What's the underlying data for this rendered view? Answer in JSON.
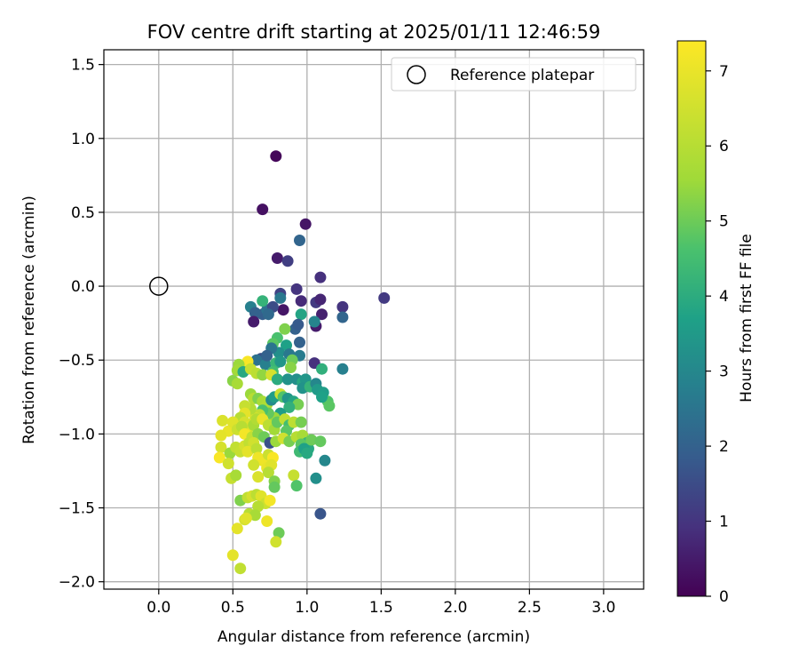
{
  "chart_data": {
    "type": "scatter",
    "title": "FOV centre drift starting at 2025/01/11 12:46:59",
    "xlabel": "Angular distance from reference (arcmin)",
    "ylabel": "Rotation from reference (arcmin)",
    "xlim": [
      -0.37,
      3.27
    ],
    "ylim": [
      -2.05,
      1.6
    ],
    "x_ticks": [
      0.0,
      0.5,
      1.0,
      1.5,
      2.0,
      2.5,
      3.0
    ],
    "x_tick_labels": [
      "0.0",
      "0.5",
      "1.0",
      "1.5",
      "2.0",
      "2.5",
      "3.0"
    ],
    "y_ticks": [
      1.5,
      1.0,
      0.5,
      0.0,
      -0.5,
      -1.0,
      -1.5,
      -2.0
    ],
    "y_tick_labels": [
      "1.5",
      "1.0",
      "0.5",
      "0.0",
      "−0.5",
      "−1.0",
      "−1.5",
      "−2.0"
    ],
    "grid": true,
    "legend": {
      "placement": "top-right",
      "entries": [
        "Reference platepar"
      ]
    },
    "reference_point": {
      "x": 0.0,
      "y": 0.0,
      "marker": "open-circle"
    },
    "colorbar": {
      "label": "Hours from first FF file",
      "range": [
        0,
        7.4
      ],
      "ticks": [
        0,
        1,
        2,
        3,
        4,
        5,
        6,
        7
      ],
      "tick_labels": [
        "0",
        "1",
        "2",
        "3",
        "4",
        "5",
        "6",
        "7"
      ],
      "colormap": "viridis"
    },
    "points": [
      [
        0.79,
        0.88,
        0.1
      ],
      [
        0.7,
        0.52,
        0.3
      ],
      [
        0.99,
        0.42,
        0.4
      ],
      [
        0.8,
        0.19,
        0.5
      ],
      [
        0.87,
        0.17,
        1.2
      ],
      [
        0.95,
        0.31,
        2.1
      ],
      [
        1.09,
        0.06,
        0.9
      ],
      [
        1.52,
        -0.08,
        1.1
      ],
      [
        0.93,
        -0.02,
        1.0
      ],
      [
        0.82,
        -0.05,
        1.3
      ],
      [
        0.96,
        -0.1,
        0.8
      ],
      [
        1.06,
        -0.11,
        1.1
      ],
      [
        1.09,
        -0.09,
        0.7
      ],
      [
        1.24,
        -0.14,
        1.0
      ],
      [
        1.24,
        -0.21,
        2.1
      ],
      [
        1.1,
        -0.19,
        0.6
      ],
      [
        1.06,
        -0.27,
        0.5
      ],
      [
        1.05,
        -0.24,
        2.9
      ],
      [
        0.96,
        -0.19,
        3.8
      ],
      [
        0.84,
        -0.16,
        0.4
      ],
      [
        0.62,
        -0.14,
        2.8
      ],
      [
        0.7,
        -0.19,
        1.9
      ],
      [
        0.73,
        -0.16,
        2.4
      ],
      [
        0.7,
        -0.1,
        4.2
      ],
      [
        0.77,
        -0.14,
        1.5
      ],
      [
        0.74,
        -0.19,
        2.2
      ],
      [
        0.65,
        -0.18,
        2.0
      ],
      [
        0.82,
        -0.08,
        2.6
      ],
      [
        0.92,
        -0.29,
        2.0
      ],
      [
        0.64,
        -0.24,
        0.5
      ],
      [
        0.85,
        -0.29,
        5.2
      ],
      [
        0.94,
        -0.26,
        1.8
      ],
      [
        0.8,
        -0.35,
        4.6
      ],
      [
        0.86,
        -0.4,
        3.7
      ],
      [
        0.81,
        -0.45,
        3.2
      ],
      [
        0.77,
        -0.39,
        4.8
      ],
      [
        0.76,
        -0.42,
        2.5
      ],
      [
        0.95,
        -0.38,
        2.0
      ],
      [
        0.95,
        -0.47,
        2.7
      ],
      [
        0.88,
        -0.46,
        2.6
      ],
      [
        1.05,
        -0.52,
        0.9
      ],
      [
        1.1,
        -0.56,
        4.1
      ],
      [
        1.24,
        -0.56,
        2.8
      ],
      [
        0.69,
        -0.49,
        1.6
      ],
      [
        0.66,
        -0.5,
        2.4
      ],
      [
        0.72,
        -0.53,
        2.8
      ],
      [
        0.73,
        -0.47,
        2.0
      ],
      [
        0.79,
        -0.52,
        4.3
      ],
      [
        0.82,
        -0.51,
        3.4
      ],
      [
        0.9,
        -0.5,
        5.0
      ],
      [
        0.89,
        -0.55,
        5.3
      ],
      [
        0.6,
        -0.51,
        7.3
      ],
      [
        0.54,
        -0.53,
        5.5
      ],
      [
        0.53,
        -0.57,
        5.6
      ],
      [
        0.57,
        -0.58,
        3.9
      ],
      [
        0.62,
        -0.56,
        6.3
      ],
      [
        0.66,
        -0.59,
        6.1
      ],
      [
        0.7,
        -0.6,
        5.4
      ],
      [
        0.77,
        -0.58,
        4.5
      ],
      [
        0.76,
        -0.6,
        6.6
      ],
      [
        0.8,
        -0.63,
        4.0
      ],
      [
        0.87,
        -0.63,
        3.3
      ],
      [
        0.93,
        -0.63,
        3.2
      ],
      [
        0.97,
        -0.65,
        3.9
      ],
      [
        0.99,
        -0.63,
        3.4
      ],
      [
        0.97,
        -0.69,
        3.3
      ],
      [
        1.02,
        -0.68,
        4.2
      ],
      [
        1.06,
        -0.66,
        3.0
      ],
      [
        1.07,
        -0.7,
        3.5
      ],
      [
        1.11,
        -0.72,
        3.6
      ],
      [
        1.14,
        -0.78,
        4.7
      ],
      [
        1.15,
        -0.81,
        4.8
      ],
      [
        1.1,
        -0.75,
        3.7
      ],
      [
        0.5,
        -0.64,
        5.3
      ],
      [
        0.53,
        -0.66,
        5.7
      ],
      [
        0.62,
        -0.73,
        5.5
      ],
      [
        0.64,
        -0.76,
        6.0
      ],
      [
        0.67,
        -0.76,
        5.2
      ],
      [
        0.7,
        -0.78,
        5.7
      ],
      [
        0.73,
        -0.8,
        5.8
      ],
      [
        0.76,
        -0.77,
        3.1
      ],
      [
        0.78,
        -0.75,
        3.6
      ],
      [
        0.82,
        -0.73,
        6.4
      ],
      [
        0.84,
        -0.75,
        4.7
      ],
      [
        0.87,
        -0.76,
        3.4
      ],
      [
        0.91,
        -0.78,
        3.8
      ],
      [
        0.94,
        -0.8,
        5.1
      ],
      [
        0.88,
        -0.82,
        4.1
      ],
      [
        0.82,
        -0.86,
        3.6
      ],
      [
        0.78,
        -0.89,
        5.5
      ],
      [
        0.74,
        -0.86,
        4.9
      ],
      [
        0.7,
        -0.84,
        4.6
      ],
      [
        0.68,
        -0.87,
        6.2
      ],
      [
        0.65,
        -0.89,
        6.5
      ],
      [
        0.62,
        -0.83,
        5.9
      ],
      [
        0.58,
        -0.81,
        6.3
      ],
      [
        0.58,
        -0.86,
        6.9
      ],
      [
        0.55,
        -0.89,
        6.0
      ],
      [
        0.58,
        -0.92,
        6.6
      ],
      [
        0.61,
        -0.95,
        6.8
      ],
      [
        0.64,
        -0.94,
        5.7
      ],
      [
        0.66,
        -0.9,
        5.9
      ],
      [
        0.7,
        -0.9,
        7.0
      ],
      [
        0.74,
        -0.94,
        6.1
      ],
      [
        0.78,
        -0.97,
        5.6
      ],
      [
        0.8,
        -0.92,
        4.9
      ],
      [
        0.85,
        -0.9,
        6.2
      ],
      [
        0.88,
        -0.94,
        4.5
      ],
      [
        0.91,
        -0.92,
        6.1
      ],
      [
        0.96,
        -0.92,
        5.1
      ],
      [
        0.86,
        -0.98,
        4.8
      ],
      [
        0.43,
        -0.91,
        6.7
      ],
      [
        0.47,
        -0.98,
        7.0
      ],
      [
        0.5,
        -0.92,
        6.8
      ],
      [
        0.53,
        -0.97,
        6.4
      ],
      [
        0.56,
        -0.95,
        6.0
      ],
      [
        0.58,
        -1.0,
        7.2
      ],
      [
        0.42,
        -1.01,
        6.9
      ],
      [
        0.63,
        -1.02,
        6.2
      ],
      [
        0.67,
        -1.0,
        5.3
      ],
      [
        0.71,
        -1.02,
        5.0
      ],
      [
        0.75,
        -1.06,
        1.6
      ],
      [
        0.79,
        -1.05,
        5.5
      ],
      [
        0.84,
        -1.03,
        6.5
      ],
      [
        0.88,
        -1.05,
        5.1
      ],
      [
        0.93,
        -1.02,
        6.0
      ],
      [
        0.97,
        -1.01,
        5.7
      ],
      [
        1.0,
        -1.06,
        4.3
      ],
      [
        1.01,
        -1.1,
        3.9
      ],
      [
        0.96,
        -1.07,
        4.8
      ],
      [
        0.95,
        -1.12,
        4.4
      ],
      [
        0.98,
        -1.1,
        3.7
      ],
      [
        1.0,
        -1.13,
        3.9
      ],
      [
        1.03,
        -1.04,
        5.0
      ],
      [
        1.09,
        -1.05,
        4.9
      ],
      [
        1.12,
        -1.18,
        3.0
      ],
      [
        0.42,
        -1.09,
        6.6
      ],
      [
        0.48,
        -1.13,
        5.5
      ],
      [
        0.52,
        -1.09,
        6.2
      ],
      [
        0.55,
        -1.12,
        6.3
      ],
      [
        0.58,
        -1.08,
        6.6
      ],
      [
        0.61,
        -1.06,
        6.2
      ],
      [
        0.64,
        -1.06,
        6.5
      ],
      [
        0.6,
        -1.12,
        6.9
      ],
      [
        0.66,
        -1.1,
        6.1
      ],
      [
        0.67,
        -1.16,
        7.1
      ],
      [
        0.7,
        -1.18,
        7.1
      ],
      [
        0.74,
        -1.14,
        6.4
      ],
      [
        0.77,
        -1.16,
        7.3
      ],
      [
        0.64,
        -1.21,
        6.5
      ],
      [
        0.73,
        -1.23,
        7.0
      ],
      [
        0.76,
        -1.21,
        6.8
      ],
      [
        0.74,
        -1.26,
        6.0
      ],
      [
        0.41,
        -1.16,
        7.3
      ],
      [
        0.47,
        -1.2,
        6.5
      ],
      [
        0.49,
        -1.3,
        6.3
      ],
      [
        0.52,
        -1.28,
        5.7
      ],
      [
        0.67,
        -1.29,
        6.7
      ],
      [
        0.78,
        -1.32,
        5.2
      ],
      [
        0.78,
        -1.36,
        4.9
      ],
      [
        0.91,
        -1.28,
        6.3
      ],
      [
        0.93,
        -1.35,
        4.7
      ],
      [
        1.06,
        -1.3,
        3.2
      ],
      [
        1.09,
        -1.54,
        1.7
      ],
      [
        0.55,
        -1.45,
        5.2
      ],
      [
        0.6,
        -1.43,
        6.2
      ],
      [
        0.63,
        -1.42,
        6.6
      ],
      [
        0.66,
        -1.41,
        6.1
      ],
      [
        0.69,
        -1.42,
        6.8
      ],
      [
        0.72,
        -1.47,
        6.4
      ],
      [
        0.75,
        -1.45,
        7.2
      ],
      [
        0.67,
        -1.49,
        6.0
      ],
      [
        0.61,
        -1.54,
        6.0
      ],
      [
        0.65,
        -1.55,
        5.7
      ],
      [
        0.58,
        -1.58,
        6.6
      ],
      [
        0.59,
        -1.57,
        6.8
      ],
      [
        0.73,
        -1.59,
        7.1
      ],
      [
        0.53,
        -1.64,
        6.9
      ],
      [
        0.81,
        -1.67,
        5.0
      ],
      [
        0.79,
        -1.73,
        6.5
      ],
      [
        0.5,
        -1.82,
        6.9
      ],
      [
        0.55,
        -1.91,
        6.2
      ]
    ]
  }
}
